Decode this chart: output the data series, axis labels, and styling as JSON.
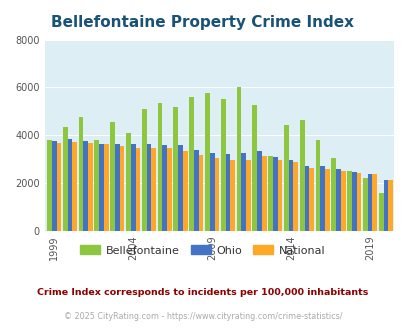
{
  "title": "Bellefontaine Property Crime Index",
  "title_color": "#1a5276",
  "background_color": "#e8f4f8",
  "years": [
    1999,
    2000,
    2001,
    2002,
    2003,
    2004,
    2005,
    2006,
    2007,
    2008,
    2009,
    2010,
    2011,
    2012,
    2013,
    2014,
    2015,
    2016,
    2017,
    2018,
    2019,
    2020
  ],
  "bellefontaine": [
    3800,
    4350,
    4750,
    3800,
    4550,
    4100,
    5100,
    5350,
    5200,
    5600,
    5750,
    5500,
    6020,
    5280,
    3130,
    4430,
    4620,
    3800,
    3050,
    2520,
    2200,
    1600
  ],
  "ohio": [
    3750,
    3850,
    3780,
    3650,
    3620,
    3620,
    3620,
    3600,
    3600,
    3400,
    3280,
    3220,
    3280,
    3350,
    3100,
    2950,
    2720,
    2700,
    2580,
    2460,
    2380,
    2140
  ],
  "national": [
    3680,
    3700,
    3660,
    3620,
    3570,
    3490,
    3470,
    3460,
    3350,
    3180,
    3050,
    2980,
    2950,
    3150,
    2960,
    2870,
    2620,
    2600,
    2500,
    2430,
    2380,
    2120
  ],
  "bellefontaine_color": "#8dc63f",
  "ohio_color": "#4472c4",
  "national_color": "#ffa726",
  "ylim": [
    0,
    8000
  ],
  "yticks": [
    0,
    2000,
    4000,
    6000,
    8000
  ],
  "xtick_years": [
    1999,
    2004,
    2009,
    2014,
    2019
  ],
  "legend_labels": [
    "Bellefontaine",
    "Ohio",
    "National"
  ],
  "footnote1": "Crime Index corresponds to incidents per 100,000 inhabitants",
  "footnote2": "© 2025 CityRating.com - https://www.cityrating.com/crime-statistics/",
  "footnote1_color": "#8b0000",
  "footnote2_color": "#aaaaaa",
  "axis_bg_color": "#ddeef5",
  "grid_color": "#ffffff",
  "fig_bg_color": "#ffffff"
}
